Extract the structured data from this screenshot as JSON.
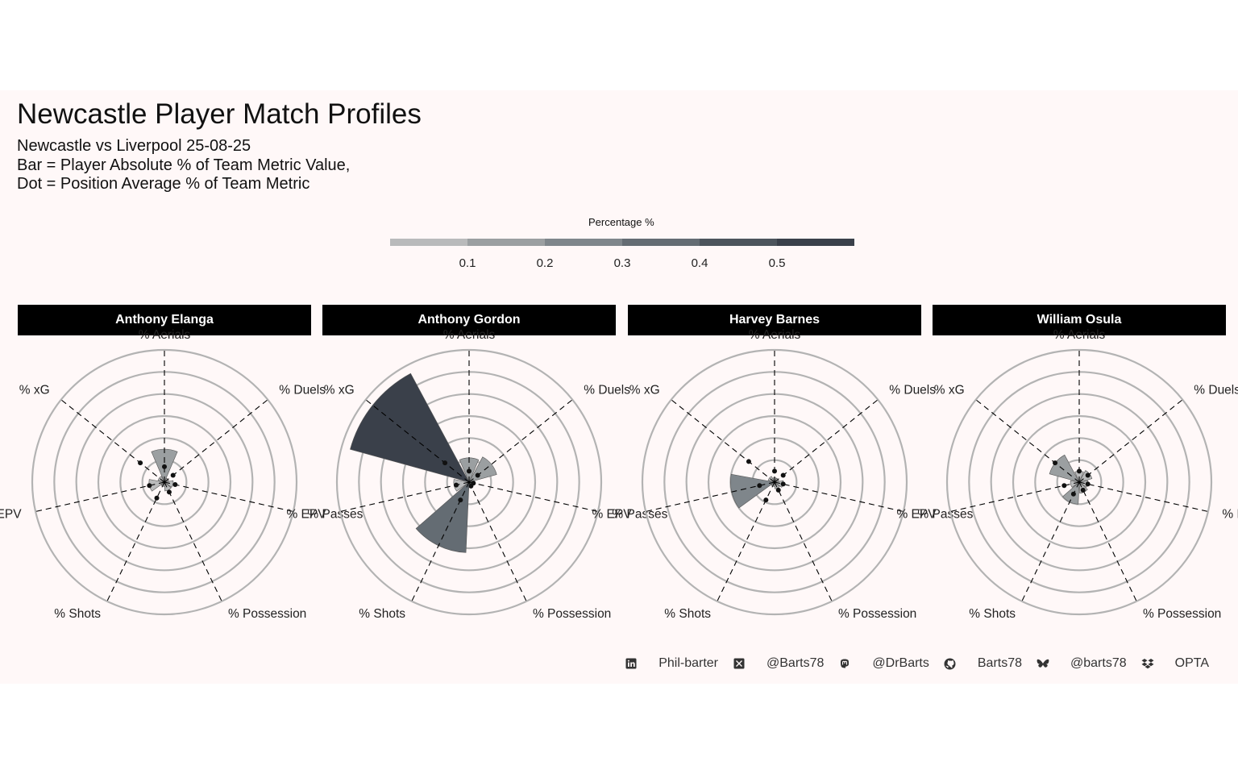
{
  "header": {
    "title": "Newcastle Player Match Profiles",
    "subtitle_lines": [
      "Newcastle vs Liverpool 25-08-25",
      "Bar = Player Absolute % of Team Metric Value,",
      "Dot = Position Average % of Team Metric"
    ]
  },
  "legend": {
    "title": "Percentage %",
    "ticks": [
      "0.1",
      "0.2",
      "0.3",
      "0.4",
      "0.5"
    ],
    "colors": [
      "#b9babb",
      "#9b9fa1",
      "#7f868b",
      "#646c73",
      "#4c545c",
      "#3a404a"
    ]
  },
  "chart_data": {
    "type": "polar-bar",
    "axis_labels": [
      "% Aerials",
      "% Duels",
      "% Passes",
      "% Possession",
      "% Shots",
      "% EPV",
      "% xG"
    ],
    "rlim": [
      0,
      0.6
    ],
    "grid_rings": [
      0.1,
      0.2,
      0.3,
      0.4,
      0.5,
      0.6
    ],
    "panels": [
      {
        "player": "Anthony Elanga",
        "bars": [
          0.15,
          0.02,
          0.04,
          0.04,
          0.02,
          0.07,
          0.03
        ],
        "dots": [
          0.07,
          0.05,
          0.05,
          0.05,
          0.08,
          0.07,
          0.14
        ]
      },
      {
        "player": "Anthony Gordon",
        "bars": [
          0.11,
          0.13,
          0.02,
          0.02,
          0.32,
          0.07,
          0.56
        ],
        "dots": [
          0.05,
          0.05,
          0.02,
          0.02,
          0.09,
          0.06,
          0.14
        ]
      },
      {
        "player": "Harvey Barnes",
        "bars": [
          0.02,
          0.02,
          0.04,
          0.03,
          0.02,
          0.2,
          0.03
        ],
        "dots": [
          0.05,
          0.05,
          0.04,
          0.04,
          0.09,
          0.07,
          0.15
        ]
      },
      {
        "player": "William Osula",
        "bars": [
          0.05,
          0.06,
          0.04,
          0.05,
          0.1,
          0.04,
          0.14
        ],
        "dots": [
          0.05,
          0.05,
          0.04,
          0.04,
          0.06,
          0.07,
          0.14
        ]
      }
    ]
  },
  "footer": {
    "items": [
      {
        "icon": "linkedin-icon",
        "label": "Phil-barter"
      },
      {
        "icon": "x-twitter-icon",
        "label": "@Barts78"
      },
      {
        "icon": "mastodon-icon",
        "label": "@DrBarts"
      },
      {
        "icon": "github-icon",
        "label": "Barts78"
      },
      {
        "icon": "bluesky-icon",
        "label": "@barts78"
      },
      {
        "icon": "dropbox-icon",
        "label": "OPTA"
      }
    ]
  }
}
